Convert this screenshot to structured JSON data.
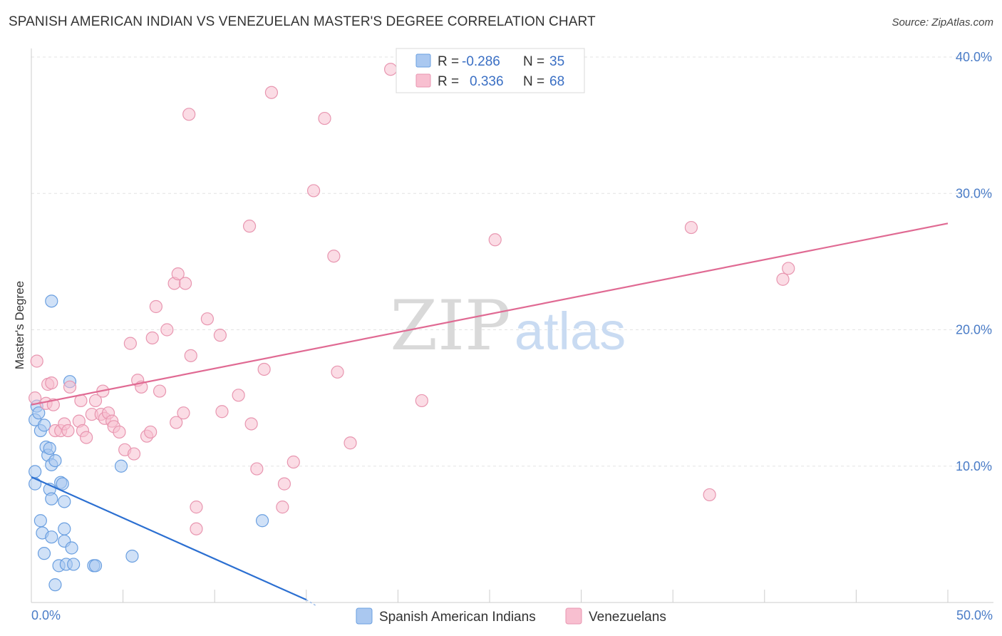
{
  "title": "SPANISH AMERICAN INDIAN VS VENEZUELAN MASTER'S DEGREE CORRELATION CHART",
  "source": "Source: ZipAtlas.com",
  "watermark": {
    "zip": "ZIP",
    "atlas": "atlas"
  },
  "legend": [
    {
      "r_label": "R =",
      "r_value": "-0.286",
      "n_label": "N =",
      "n_value": "35",
      "color": "#aac8f0",
      "stroke": "#6a9fe0"
    },
    {
      "r_label": "R =",
      "r_value": "0.336",
      "n_label": "N =",
      "n_value": "68",
      "color": "#f8bfd0",
      "stroke": "#e896b0"
    }
  ],
  "chart_data": {
    "type": "scatter",
    "title": "SPANISH AMERICAN INDIAN VS VENEZUELAN MASTER'S DEGREE CORRELATION CHART",
    "xlabel": "",
    "ylabel": "Master's Degree",
    "xlim": [
      0,
      50
    ],
    "ylim": [
      0,
      40
    ],
    "x_tick_labels": [
      "0.0%",
      "50.0%"
    ],
    "y_ticks": [
      10,
      20,
      30,
      40
    ],
    "y_tick_labels": [
      "10.0%",
      "20.0%",
      "30.0%",
      "40.0%"
    ],
    "grid": true,
    "series": [
      {
        "name": "Spanish American Indians",
        "color": "#6a9fe0",
        "fill": "#aac8f0",
        "trend": {
          "x": [
            0,
            15
          ],
          "y": [
            9.2,
            0.2
          ]
        },
        "points": [
          [
            0.2,
            13.4
          ],
          [
            0.3,
            14.4
          ],
          [
            0.4,
            13.9
          ],
          [
            0.5,
            12.6
          ],
          [
            0.7,
            13.0
          ],
          [
            0.2,
            9.6
          ],
          [
            0.2,
            8.7
          ],
          [
            0.8,
            11.4
          ],
          [
            0.9,
            10.8
          ],
          [
            1.0,
            11.3
          ],
          [
            1.1,
            10.1
          ],
          [
            1.3,
            10.4
          ],
          [
            1.0,
            8.3
          ],
          [
            1.1,
            7.6
          ],
          [
            1.6,
            8.8
          ],
          [
            1.7,
            8.7
          ],
          [
            1.8,
            7.4
          ],
          [
            0.5,
            6.0
          ],
          [
            0.6,
            5.1
          ],
          [
            0.7,
            3.6
          ],
          [
            1.1,
            4.8
          ],
          [
            1.8,
            5.4
          ],
          [
            1.8,
            4.5
          ],
          [
            2.2,
            4.0
          ],
          [
            1.5,
            2.7
          ],
          [
            1.9,
            2.8
          ],
          [
            2.3,
            2.8
          ],
          [
            3.4,
            2.7
          ],
          [
            3.5,
            2.7
          ],
          [
            1.3,
            1.3
          ],
          [
            1.1,
            22.1
          ],
          [
            2.1,
            16.2
          ],
          [
            4.9,
            10.0
          ],
          [
            5.5,
            3.4
          ],
          [
            12.6,
            6.0
          ]
        ]
      },
      {
        "name": "Venezuelans",
        "color": "#e896b0",
        "fill": "#f8bfd0",
        "trend": {
          "x": [
            0,
            50
          ],
          "y": [
            14.5,
            27.8
          ]
        },
        "points": [
          [
            0.3,
            17.7
          ],
          [
            0.2,
            15.0
          ],
          [
            0.8,
            14.6
          ],
          [
            0.9,
            16.0
          ],
          [
            1.1,
            16.1
          ],
          [
            1.2,
            14.5
          ],
          [
            1.3,
            12.6
          ],
          [
            1.6,
            12.6
          ],
          [
            1.8,
            13.1
          ],
          [
            2.0,
            12.6
          ],
          [
            2.1,
            15.8
          ],
          [
            2.6,
            13.3
          ],
          [
            2.7,
            14.8
          ],
          [
            2.8,
            12.6
          ],
          [
            3.0,
            12.1
          ],
          [
            3.3,
            13.8
          ],
          [
            3.5,
            14.8
          ],
          [
            3.8,
            13.8
          ],
          [
            3.9,
            15.5
          ],
          [
            4.0,
            13.5
          ],
          [
            4.2,
            13.9
          ],
          [
            4.4,
            13.3
          ],
          [
            4.5,
            12.9
          ],
          [
            4.8,
            12.5
          ],
          [
            5.1,
            11.2
          ],
          [
            5.4,
            19.0
          ],
          [
            5.6,
            10.9
          ],
          [
            5.8,
            16.3
          ],
          [
            6.0,
            15.8
          ],
          [
            6.3,
            12.2
          ],
          [
            6.5,
            12.5
          ],
          [
            6.6,
            19.4
          ],
          [
            6.8,
            21.7
          ],
          [
            7.0,
            15.5
          ],
          [
            7.4,
            20.0
          ],
          [
            7.8,
            23.4
          ],
          [
            7.9,
            13.2
          ],
          [
            8.0,
            24.1
          ],
          [
            8.3,
            13.9
          ],
          [
            8.4,
            23.4
          ],
          [
            8.6,
            35.8
          ],
          [
            8.7,
            18.1
          ],
          [
            9.0,
            7.0
          ],
          [
            9.0,
            5.4
          ],
          [
            9.6,
            20.8
          ],
          [
            10.3,
            19.6
          ],
          [
            10.4,
            14.0
          ],
          [
            11.3,
            15.2
          ],
          [
            11.9,
            27.6
          ],
          [
            12.0,
            13.1
          ],
          [
            12.3,
            9.8
          ],
          [
            12.7,
            17.1
          ],
          [
            13.1,
            37.4
          ],
          [
            13.7,
            7.0
          ],
          [
            13.8,
            8.7
          ],
          [
            14.3,
            10.3
          ],
          [
            15.4,
            30.2
          ],
          [
            16.0,
            35.5
          ],
          [
            16.5,
            25.4
          ],
          [
            16.7,
            16.9
          ],
          [
            17.4,
            11.7
          ],
          [
            19.6,
            39.1
          ],
          [
            21.3,
            14.8
          ],
          [
            25.3,
            26.6
          ],
          [
            36.0,
            27.5
          ],
          [
            37.0,
            7.9
          ],
          [
            41.0,
            23.7
          ],
          [
            41.3,
            24.5
          ]
        ]
      }
    ]
  },
  "bottom_legend": [
    {
      "label": "Spanish American Indians"
    },
    {
      "label": "Venezuelans"
    }
  ]
}
